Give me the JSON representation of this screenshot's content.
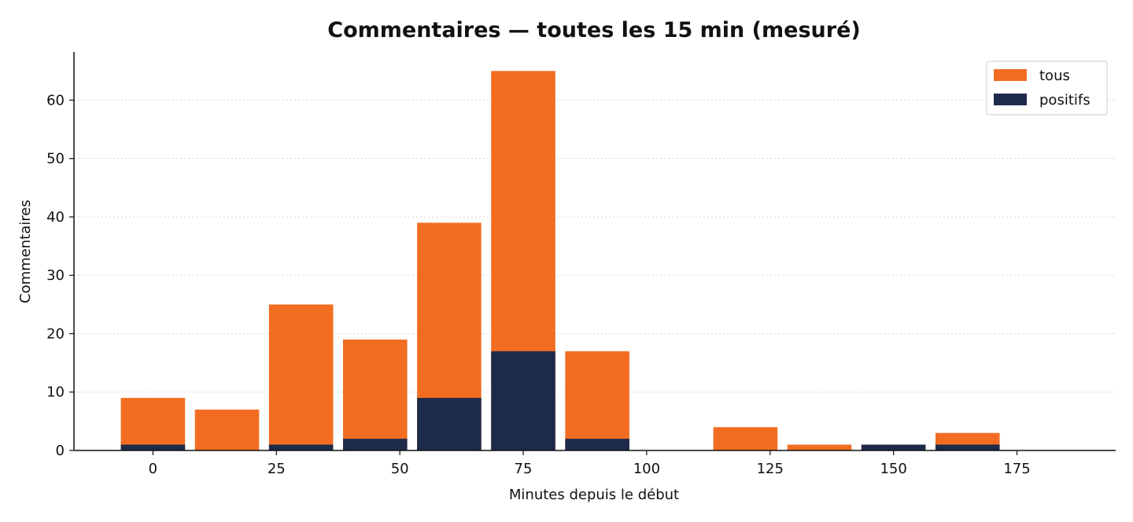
{
  "chart_data": {
    "type": "bar",
    "stacked": false,
    "title": "Commentaires — toutes les 15 min (mesuré)",
    "xlabel": "Minutes depuis le début",
    "ylabel": "Commentaires",
    "x": [
      0,
      15,
      30,
      45,
      60,
      75,
      90,
      105,
      120,
      135,
      150,
      165
    ],
    "bar_width": 13,
    "series": [
      {
        "name": "tous",
        "color": "#f26d21",
        "values": [
          9,
          7,
          25,
          19,
          39,
          65,
          17,
          0,
          4,
          1,
          1,
          3
        ]
      },
      {
        "name": "positifs",
        "color": "#1e2a4a",
        "values": [
          1,
          0,
          1,
          2,
          9,
          17,
          2,
          0,
          0,
          0,
          1,
          1
        ]
      }
    ],
    "xlim": [
      -16,
      195
    ],
    "ylim": [
      0,
      68
    ],
    "xticks": [
      0,
      25,
      50,
      75,
      100,
      125,
      150,
      175
    ],
    "yticks": [
      0,
      10,
      20,
      30,
      40,
      50,
      60
    ],
    "grid": "y-dotted",
    "legend_position": "top-right"
  }
}
